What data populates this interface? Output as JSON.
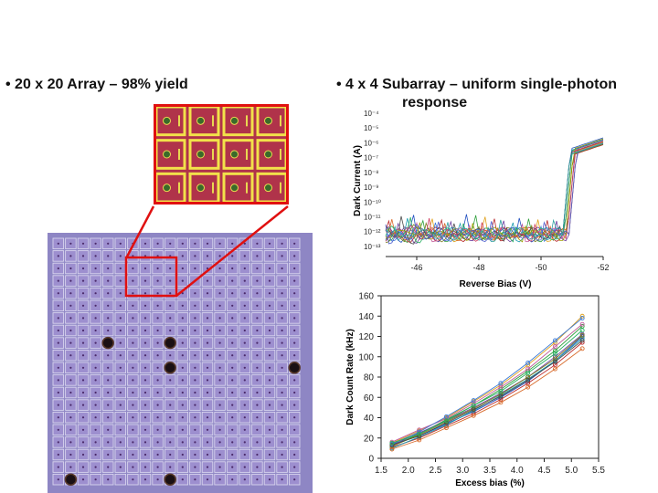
{
  "bullets": {
    "left": "• 20 x 20 Array – 98% yield",
    "right_line1": "• 4 x 4 Subarray – uniform single-photon",
    "right_line2": "response"
  },
  "wafer_image": {
    "rows": 20,
    "cols": 20,
    "defect_count": 6
  },
  "zoom_image": {
    "rows": 3,
    "cols": 4
  },
  "colors": {
    "wafer_bg": "#8e86c4",
    "cell": "#9d8fcf",
    "grid": "#d8d4ee",
    "zoom_bg": "#b0334a",
    "zoom_grid": "#f2e24a",
    "callout": "#e01010"
  },
  "chart_data": [
    {
      "type": "line",
      "title": "",
      "xlabel": "Reverse Bias (V)",
      "ylabel": "Dark Current (A)",
      "x_ticks": [
        "-46",
        "-48",
        "-50",
        "-52"
      ],
      "y_ticks": [
        "10⁻⁴",
        "10⁻⁵",
        "10⁻⁶",
        "10⁻⁷",
        "10⁻⁸",
        "10⁻⁹",
        "10⁻¹⁰",
        "10⁻¹¹",
        "10⁻¹²",
        "10⁻¹³"
      ],
      "xlim": [
        -45,
        -52
      ],
      "ylim_log10": [
        -13.5,
        -4
      ],
      "series_count": 16,
      "series_colors": [
        "#1f4fbf",
        "#2c9e3a",
        "#e0a01a",
        "#b8262a",
        "#6d3fa0",
        "#1a9bb0",
        "#c05a9a",
        "#7a7a1a",
        "#3a7ad8",
        "#d86a2a",
        "#4a4a4a",
        "#26b060",
        "#a0a000",
        "#d03c60",
        "#5060d0",
        "#30a0a0"
      ]
    },
    {
      "type": "line",
      "title": "",
      "xlabel": "Excess bias (%)",
      "ylabel": "Dark Count Rate (kHz)",
      "x_ticks": [
        "1.5",
        "2.0",
        "2.5",
        "3.0",
        "3.5",
        "4.0",
        "4.5",
        "5.0",
        "5.5"
      ],
      "y_ticks": [
        "0",
        "20",
        "40",
        "60",
        "80",
        "100",
        "120",
        "140",
        "160"
      ],
      "xlim": [
        1.5,
        5.5
      ],
      "ylim": [
        0,
        160
      ],
      "x": [
        1.7,
        2.2,
        2.7,
        3.2,
        3.7,
        4.2,
        4.7,
        5.2
      ],
      "series": [
        {
          "values": [
            14,
            22,
            34,
            46,
            60,
            76,
            96,
            120
          ],
          "color": "#1f4fbf"
        },
        {
          "values": [
            12,
            24,
            38,
            52,
            68,
            86,
            106,
            130
          ],
          "color": "#2c9e3a"
        },
        {
          "values": [
            15,
            27,
            40,
            56,
            72,
            92,
            114,
            140
          ],
          "color": "#e0a01a"
        },
        {
          "values": [
            11,
            20,
            32,
            44,
            58,
            74,
            92,
            114
          ],
          "color": "#b8262a"
        },
        {
          "values": [
            13,
            25,
            37,
            50,
            64,
            80,
            100,
            122
          ],
          "color": "#6d3fa0"
        },
        {
          "values": [
            10,
            21,
            33,
            47,
            62,
            78,
            96,
            118
          ],
          "color": "#1a9bb0"
        },
        {
          "values": [
            16,
            28,
            39,
            54,
            70,
            88,
            110,
            132
          ],
          "color": "#c05a9a"
        },
        {
          "values": [
            12,
            23,
            36,
            49,
            63,
            80,
            98,
            121
          ],
          "color": "#7a7a1a"
        },
        {
          "values": [
            14,
            26,
            41,
            57,
            74,
            94,
            116,
            138
          ],
          "color": "#3a7ad8"
        },
        {
          "values": [
            9,
            18,
            30,
            42,
            55,
            70,
            88,
            108
          ],
          "color": "#d86a2a"
        },
        {
          "values": [
            13,
            22,
            35,
            48,
            61,
            77,
            95,
            116
          ],
          "color": "#4a4a4a"
        },
        {
          "values": [
            15,
            24,
            37,
            52,
            66,
            84,
            103,
            126
          ],
          "color": "#26b060"
        }
      ]
    }
  ]
}
